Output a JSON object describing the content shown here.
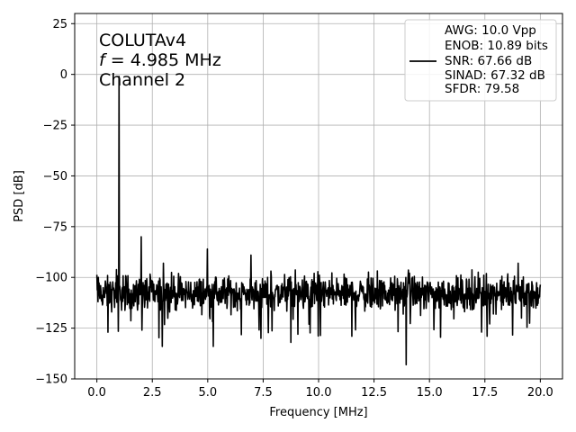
{
  "chart_data": {
    "type": "line",
    "xlabel": "Frequency [MHz]",
    "ylabel": "PSD [dB]",
    "xlim": [
      -1.0,
      21.0
    ],
    "ylim": [
      -150,
      30
    ],
    "xticks": [
      0.0,
      2.5,
      5.0,
      7.5,
      10.0,
      12.5,
      15.0,
      17.5,
      20.0
    ],
    "xtick_labels": [
      "0.0",
      "2.5",
      "5.0",
      "7.5",
      "10.0",
      "12.5",
      "15.0",
      "17.5",
      "20.0"
    ],
    "yticks": [
      25,
      0,
      -25,
      -50,
      -75,
      -100,
      -125,
      -150
    ],
    "ytick_labels": [
      "25",
      "0",
      "−25",
      "−50",
      "−75",
      "−100",
      "−125",
      "−150"
    ],
    "grid": true,
    "line_color": "#000000",
    "annotation": {
      "line1": "COLUTAv4",
      "line2_var": "f",
      "line2_rest": " = 4.985 MHz",
      "line3": "Channel 2"
    },
    "legend": {
      "placement": "top-right",
      "lines": [
        "AWG: 10.0 Vpp",
        "ENOB: 10.89 bits",
        "SNR: 67.66 dB",
        "SINAD: 67.32 dB",
        "SFDR: 79.58"
      ]
    },
    "noise_floor": {
      "x_start": 0.0,
      "x_end": 20.0,
      "mean": -108,
      "range": [
        -120,
        -96
      ]
    },
    "peaks": [
      {
        "x": 1.0,
        "y": -1
      },
      {
        "x": 2.0,
        "y": -80
      },
      {
        "x": 3.0,
        "y": -93
      },
      {
        "x": 4.98,
        "y": -86
      },
      {
        "x": 6.95,
        "y": -89
      },
      {
        "x": 19.0,
        "y": -93
      }
    ],
    "dips": [
      {
        "x": 0.5,
        "y": -127
      },
      {
        "x": 2.95,
        "y": -134
      },
      {
        "x": 5.25,
        "y": -134
      },
      {
        "x": 7.4,
        "y": -130
      },
      {
        "x": 8.75,
        "y": -132
      },
      {
        "x": 11.5,
        "y": -129
      },
      {
        "x": 13.95,
        "y": -143
      },
      {
        "x": 17.6,
        "y": -129
      }
    ]
  }
}
